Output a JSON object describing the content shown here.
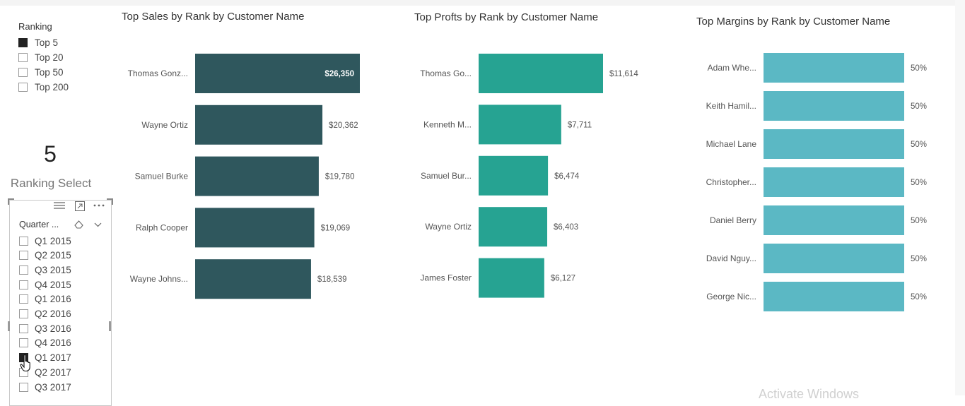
{
  "ranking_slicer": {
    "title": "Ranking",
    "options": [
      {
        "label": "Top 5",
        "checked": true
      },
      {
        "label": "Top 20",
        "checked": false
      },
      {
        "label": "Top 50",
        "checked": false
      },
      {
        "label": "Top 200",
        "checked": false
      }
    ]
  },
  "card": {
    "value": "5",
    "label": "Ranking Select"
  },
  "quarter_slicer": {
    "header": "Quarter ...",
    "icons": {
      "focus": "hamburger-icon",
      "expand": "expand-icon",
      "more": "more-options-icon",
      "eraser": "eraser-icon",
      "chevron": "chevron-down-icon"
    },
    "items": [
      {
        "label": "Q1 2015",
        "checked": false
      },
      {
        "label": "Q2 2015",
        "checked": false
      },
      {
        "label": "Q3 2015",
        "checked": false
      },
      {
        "label": "Q4 2015",
        "checked": false
      },
      {
        "label": "Q1 2016",
        "checked": false
      },
      {
        "label": "Q2 2016",
        "checked": false
      },
      {
        "label": "Q3 2016",
        "checked": false
      },
      {
        "label": "Q4 2016",
        "checked": false
      },
      {
        "label": "Q1 2017",
        "checked": true
      },
      {
        "label": "Q2 2017",
        "checked": false
      },
      {
        "label": "Q3 2017",
        "checked": false
      }
    ]
  },
  "watermark": "Activate Windows",
  "chart_data": [
    {
      "type": "bar",
      "orientation": "horizontal",
      "title": "Top Sales by Rank by Customer Name",
      "categories": [
        "Thomas Gonz...",
        "Wayne Ortiz",
        "Samuel Burke",
        "Ralph Cooper",
        "Wayne Johns..."
      ],
      "values": [
        26350,
        20362,
        19780,
        19069,
        18539
      ],
      "data_labels": [
        "$26,350",
        "$20,362",
        "$19,780",
        "$19,069",
        "$18,539"
      ],
      "xlim": [
        0,
        26350
      ],
      "color": "#2f575d",
      "highlight_label_inside_first": true
    },
    {
      "type": "bar",
      "orientation": "horizontal",
      "title": "Top Profts by Rank by Customer Name",
      "categories": [
        "Thomas Go...",
        "Kenneth M...",
        "Samuel Bur...",
        "Wayne Ortiz",
        "James Foster"
      ],
      "values": [
        11614,
        7711,
        6474,
        6403,
        6127
      ],
      "data_labels": [
        "$11,614",
        "$7,711",
        "$6,474",
        "$6,403",
        "$6,127"
      ],
      "xlim": [
        0,
        11614
      ],
      "color": "#26a392"
    },
    {
      "type": "bar",
      "orientation": "horizontal",
      "title": "Top Margins by Rank by Customer Name",
      "categories": [
        "Adam Whe...",
        "Keith Hamil...",
        "Michael Lane",
        "Christopher...",
        "Daniel Berry",
        "David Nguy...",
        "George Nic..."
      ],
      "values": [
        50,
        50,
        50,
        50,
        50,
        50,
        50
      ],
      "data_labels": [
        "50%",
        "50%",
        "50%",
        "50%",
        "50%",
        "50%",
        "50%"
      ],
      "xlim": [
        0,
        50
      ],
      "color": "#5bb8c4"
    }
  ]
}
